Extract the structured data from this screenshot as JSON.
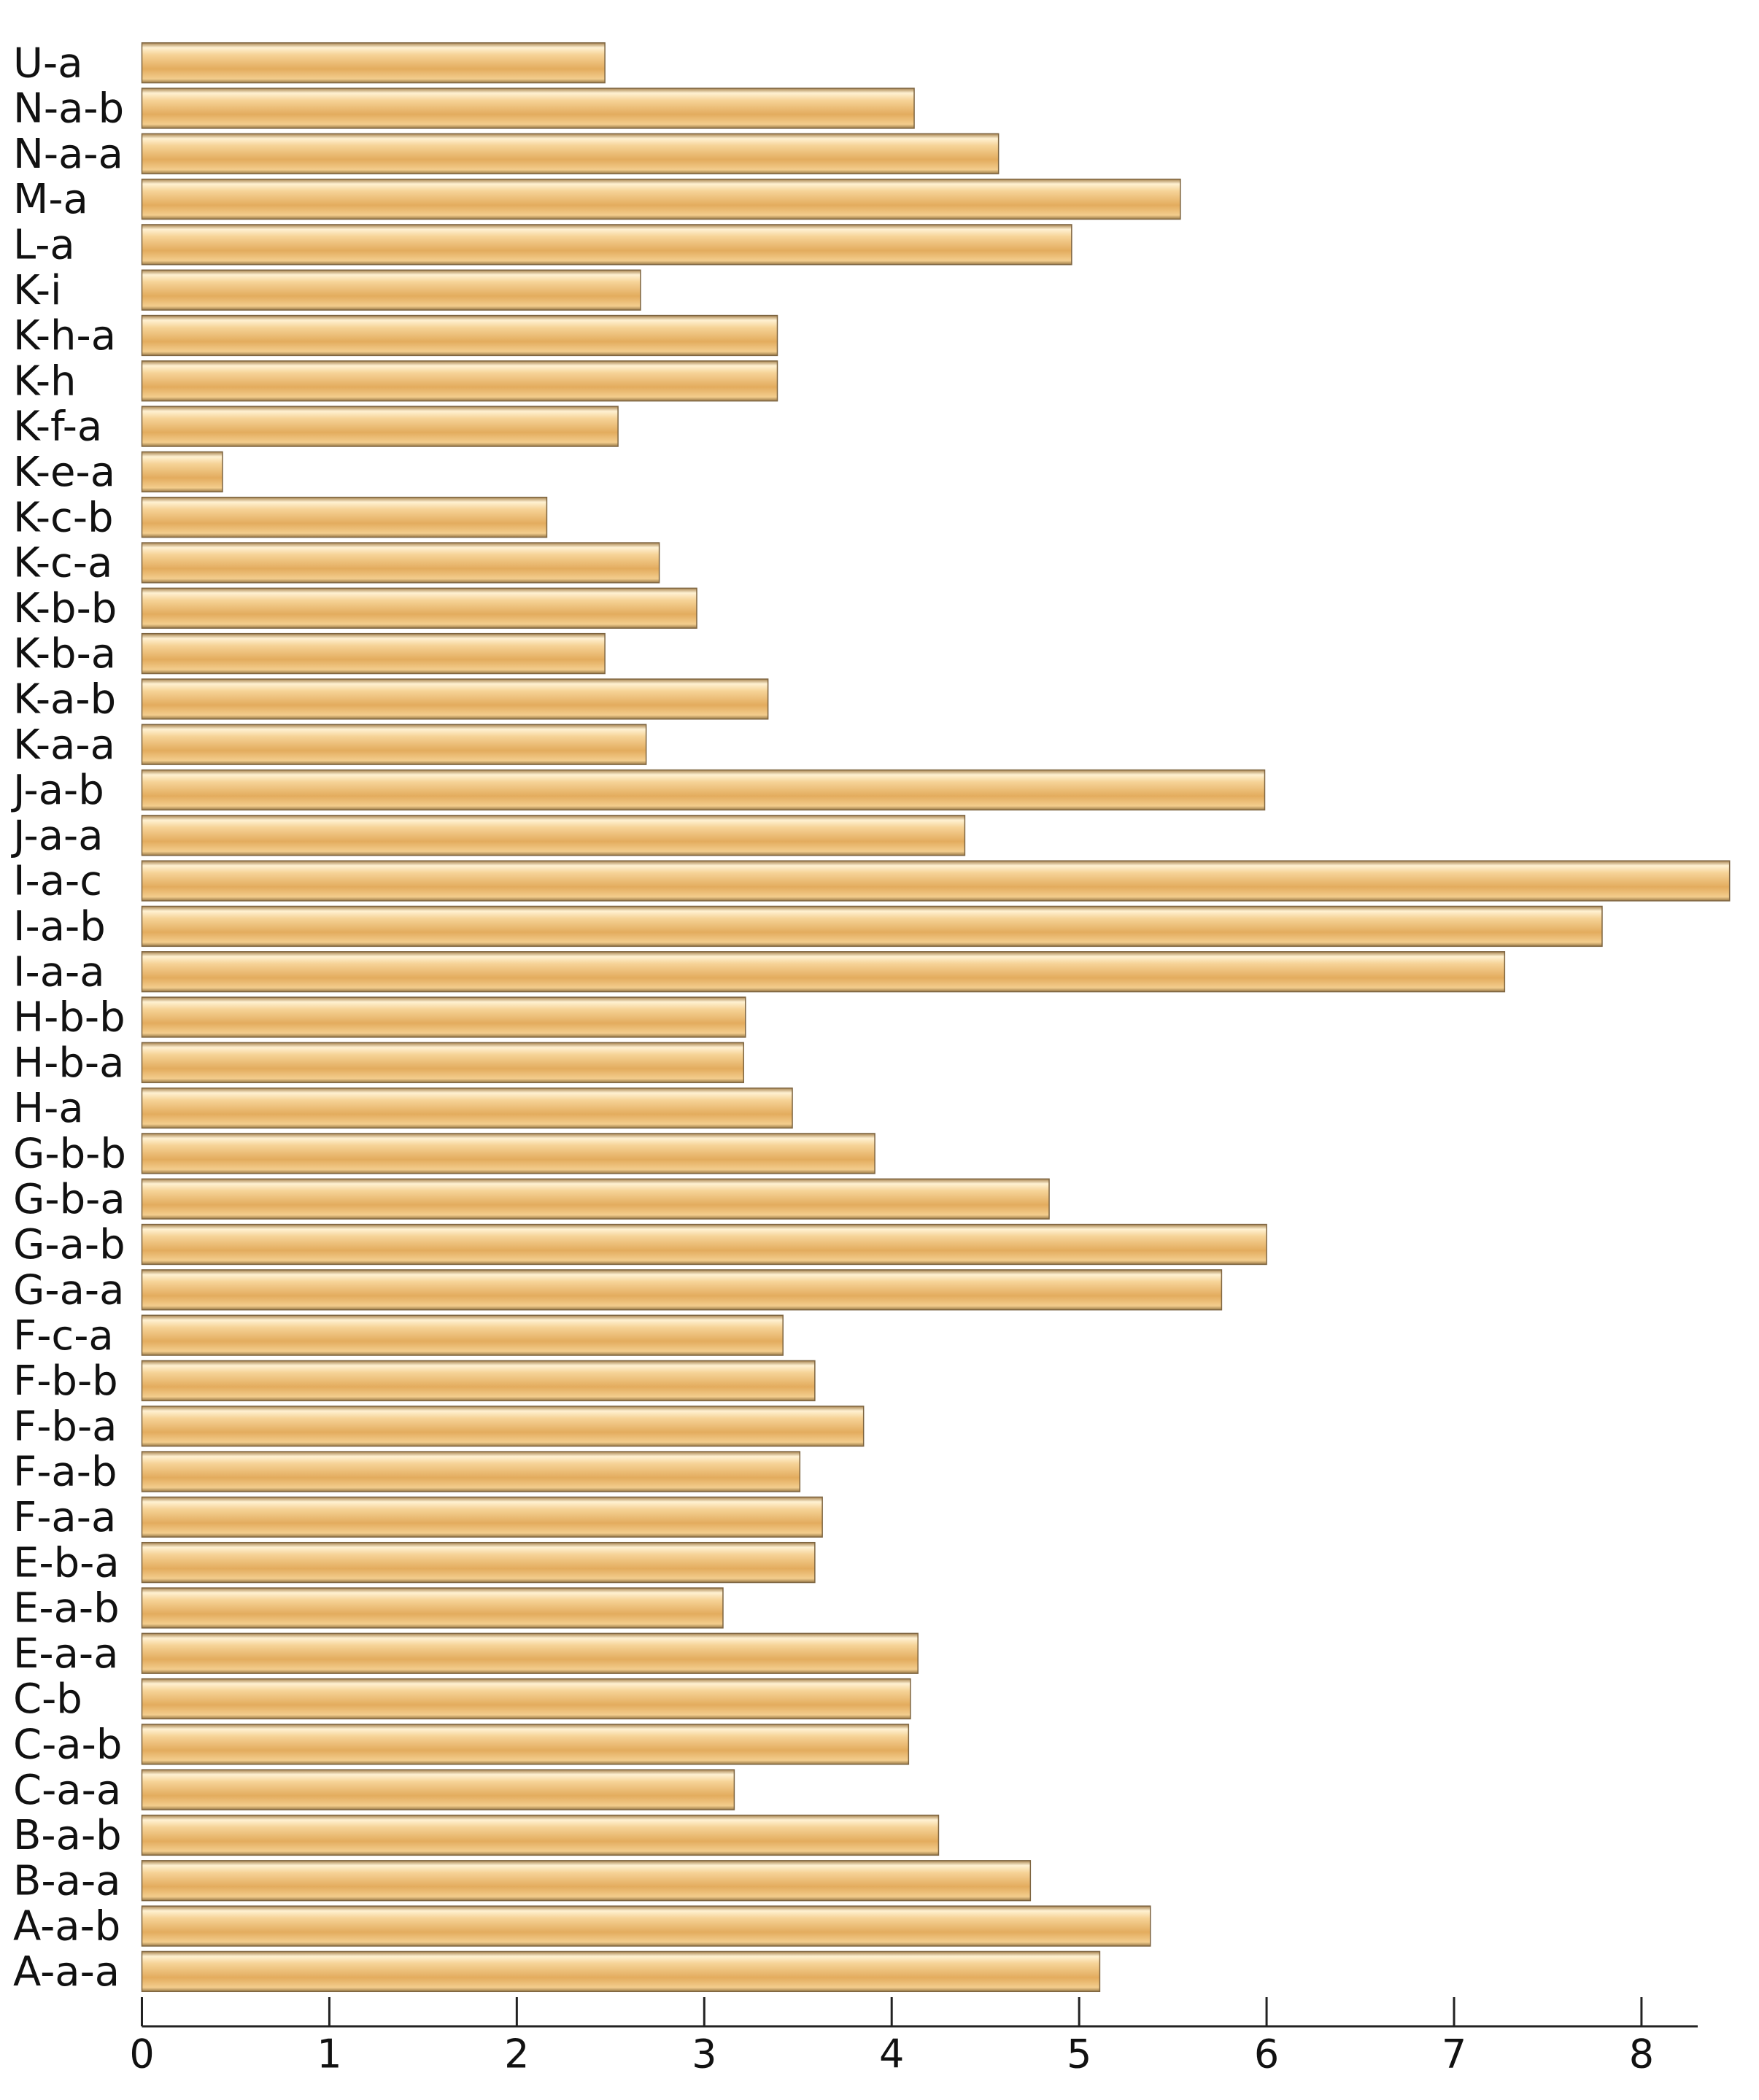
{
  "chart_data": {
    "type": "barh",
    "categories": [
      "A-a-a",
      "A-a-b",
      "B-a-a",
      "B-a-b",
      "C-a-a",
      "C-a-b",
      "C-b",
      "E-a-a",
      "E-a-b",
      "E-b-a",
      "F-a-a",
      "F-a-b",
      "F-b-a",
      "F-b-b",
      "F-c-a",
      "G-a-a",
      "G-a-b",
      "G-b-a",
      "G-b-b",
      "H-a",
      "H-b-a",
      "H-b-b",
      "I-a-a",
      "I-a-b",
      "I-a-c",
      "J-a-a",
      "J-a-b",
      "K-a-a",
      "K-a-b",
      "K-b-a",
      "K-b-b",
      "K-c-a",
      "K-c-b",
      "K-e-a",
      "K-f-a",
      "K-h",
      "K-h-a",
      "K-i",
      "L-a",
      "M-a",
      "N-a-a",
      "N-a-b",
      "U-a"
    ],
    "values": [
      5.11,
      5.38,
      4.74,
      4.25,
      3.16,
      4.09,
      4.1,
      4.14,
      3.1,
      3.59,
      3.63,
      3.51,
      3.85,
      3.59,
      3.42,
      5.76,
      6.0,
      4.84,
      3.91,
      3.47,
      3.21,
      3.22,
      7.27,
      7.79,
      8.47,
      4.39,
      5.99,
      2.69,
      3.34,
      2.47,
      2.96,
      2.76,
      2.16,
      0.43,
      2.54,
      3.39,
      3.39,
      2.66,
      4.96,
      5.54,
      4.57,
      4.12,
      2.47
    ],
    "color": "#e8b66b",
    "xlim": [
      0,
      8.3
    ],
    "xticks": [
      0,
      1,
      2,
      3,
      4,
      5,
      6,
      7,
      8
    ]
  }
}
